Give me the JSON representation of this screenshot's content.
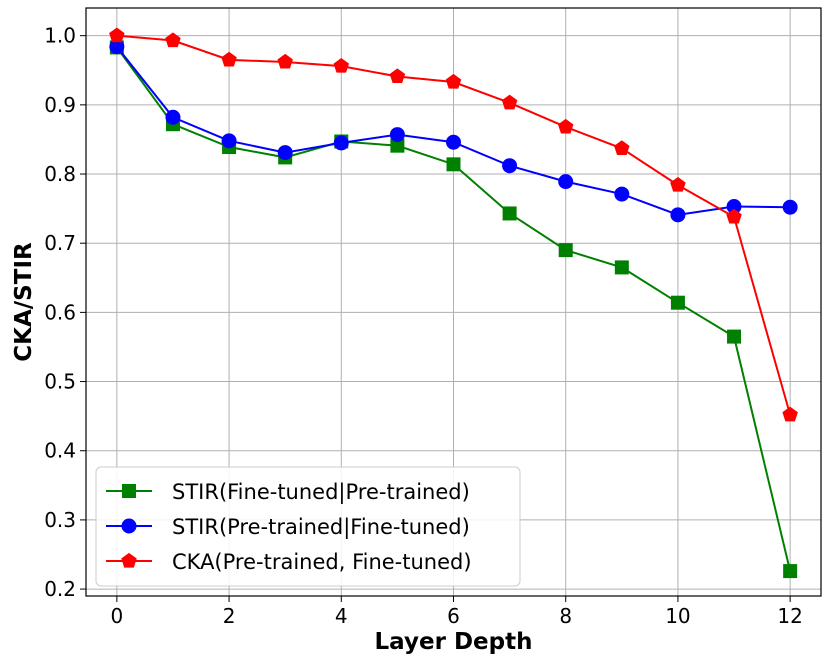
{
  "chart_data": {
    "type": "line",
    "xlabel": "Layer Depth",
    "ylabel": "CKA/STIR",
    "xlim": [
      -0.55,
      12.55
    ],
    "ylim": [
      0.19,
      1.04
    ],
    "xticks": [
      0,
      2,
      4,
      6,
      8,
      10,
      12
    ],
    "yticks": [
      0.2,
      0.3,
      0.4,
      0.5,
      0.6,
      0.7,
      0.8,
      0.9,
      1.0
    ],
    "ytick_labels": [
      "0.2",
      "0.3",
      "0.4",
      "0.5",
      "0.6",
      "0.7",
      "0.8",
      "0.9",
      "1.0"
    ],
    "grid": true,
    "legend_position": "lower-left",
    "x": [
      0,
      1,
      2,
      3,
      4,
      5,
      6,
      7,
      8,
      9,
      10,
      11,
      12
    ],
    "series": [
      {
        "name": "STIR(Fine-tuned|Pre-trained)",
        "color": "#008000",
        "marker": "square",
        "values": [
          0.983,
          0.872,
          0.839,
          0.824,
          0.847,
          0.841,
          0.814,
          0.743,
          0.69,
          0.665,
          0.614,
          0.565,
          0.226
        ]
      },
      {
        "name": "STIR(Pre-trained|Fine-tuned)",
        "color": "#0000ff",
        "marker": "circle",
        "values": [
          0.984,
          0.882,
          0.848,
          0.831,
          0.845,
          0.857,
          0.846,
          0.812,
          0.789,
          0.771,
          0.741,
          0.753,
          0.752
        ]
      },
      {
        "name": "CKA(Pre-trained, Fine-tuned)",
        "color": "#ff0000",
        "marker": "pentagon",
        "values": [
          1.0,
          0.993,
          0.965,
          0.962,
          0.956,
          0.941,
          0.933,
          0.903,
          0.868,
          0.837,
          0.784,
          0.738,
          0.452
        ]
      }
    ]
  }
}
